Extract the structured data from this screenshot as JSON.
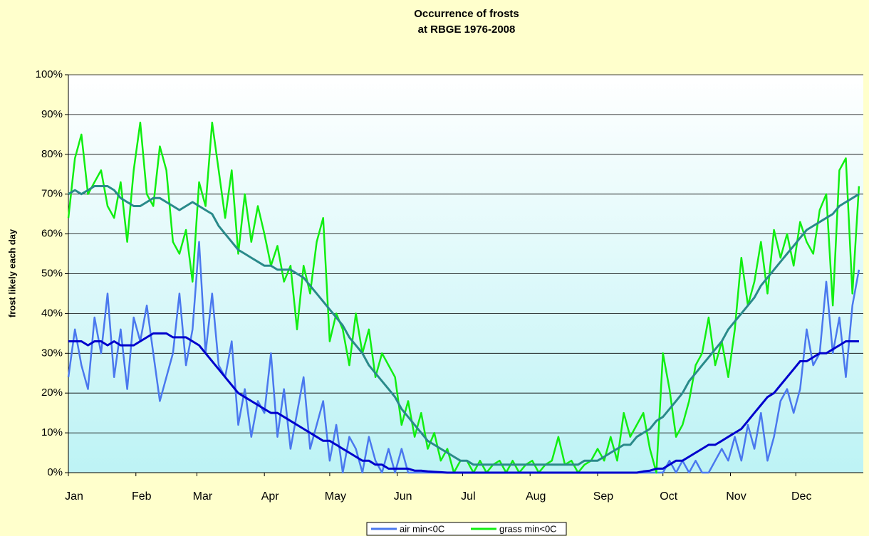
{
  "chart_data": {
    "type": "line",
    "title": "Occurrence of frosts",
    "subtitle": "at RBGE 1976-2008",
    "y_label": "frost likely each day",
    "xlim": [
      1,
      366
    ],
    "xticks": [
      {
        "value": 1,
        "label": "Jan"
      },
      {
        "value": 32,
        "label": "Feb"
      },
      {
        "value": 60,
        "label": "Mar"
      },
      {
        "value": 91,
        "label": "Apr"
      },
      {
        "value": 121,
        "label": "May"
      },
      {
        "value": 152,
        "label": "Jun"
      },
      {
        "value": 182,
        "label": "Jul"
      },
      {
        "value": 213,
        "label": "Aug"
      },
      {
        "value": 244,
        "label": "Sep"
      },
      {
        "value": 274,
        "label": "Oct"
      },
      {
        "value": 305,
        "label": "Nov"
      },
      {
        "value": 335,
        "label": "Dec"
      }
    ],
    "ylim": [
      0,
      100
    ],
    "yticks": [
      {
        "value": 0,
        "label": "0%"
      },
      {
        "value": 10,
        "label": "10%"
      },
      {
        "value": 20,
        "label": "20%"
      },
      {
        "value": 30,
        "label": "30%"
      },
      {
        "value": 40,
        "label": "40%"
      },
      {
        "value": 50,
        "label": "50%"
      },
      {
        "value": 60,
        "label": "60%"
      },
      {
        "value": 70,
        "label": "70%"
      },
      {
        "value": 80,
        "label": "80%"
      },
      {
        "value": 90,
        "label": "90%"
      },
      {
        "value": 100,
        "label": "100%"
      }
    ],
    "grid": true,
    "legend": "bottom",
    "x": [
      1,
      4,
      7,
      10,
      13,
      16,
      19,
      22,
      25,
      28,
      31,
      34,
      37,
      40,
      43,
      46,
      49,
      52,
      55,
      58,
      61,
      64,
      67,
      70,
      73,
      76,
      79,
      82,
      85,
      88,
      91,
      94,
      97,
      100,
      103,
      106,
      109,
      112,
      115,
      118,
      121,
      124,
      127,
      130,
      133,
      136,
      139,
      142,
      145,
      148,
      151,
      154,
      157,
      160,
      163,
      166,
      169,
      172,
      175,
      178,
      181,
      184,
      187,
      190,
      193,
      196,
      199,
      202,
      205,
      208,
      211,
      214,
      217,
      220,
      223,
      226,
      229,
      232,
      235,
      238,
      241,
      244,
      247,
      250,
      253,
      256,
      259,
      262,
      265,
      268,
      271,
      274,
      277,
      280,
      283,
      286,
      289,
      292,
      295,
      298,
      301,
      304,
      307,
      310,
      313,
      316,
      319,
      322,
      325,
      328,
      331,
      334,
      337,
      340,
      343,
      346,
      349,
      352,
      355,
      358,
      361,
      364
    ],
    "series": [
      {
        "name": "air min<0C",
        "color": "#4a78ee",
        "values": [
          24,
          36,
          27,
          21,
          39,
          30,
          45,
          24,
          36,
          21,
          39,
          33,
          42,
          30,
          18,
          24,
          30,
          45,
          27,
          36,
          58,
          30,
          45,
          27,
          24,
          33,
          12,
          21,
          9,
          18,
          15,
          30,
          9,
          21,
          6,
          15,
          24,
          6,
          12,
          18,
          3,
          12,
          0,
          9,
          6,
          0,
          9,
          3,
          0,
          6,
          0,
          6,
          0,
          0,
          0,
          0,
          0,
          0,
          0,
          0,
          0,
          0,
          0,
          0,
          0,
          0,
          0,
          0,
          0,
          0,
          0,
          0,
          0,
          0,
          0,
          0,
          0,
          0,
          0,
          0,
          0,
          0,
          0,
          0,
          0,
          0,
          0,
          0,
          0,
          0,
          0,
          0,
          3,
          0,
          3,
          0,
          3,
          0,
          0,
          3,
          6,
          3,
          9,
          3,
          12,
          6,
          15,
          3,
          9,
          18,
          21,
          15,
          21,
          36,
          27,
          30,
          48,
          30,
          39,
          24,
          42,
          51
        ]
      },
      {
        "name": "grass min<0C",
        "color": "#11ee11",
        "values": [
          64,
          79,
          85,
          70,
          73,
          76,
          67,
          64,
          73,
          58,
          76,
          88,
          70,
          67,
          82,
          76,
          58,
          55,
          61,
          48,
          73,
          67,
          88,
          76,
          64,
          76,
          55,
          70,
          58,
          67,
          60,
          52,
          57,
          48,
          52,
          36,
          52,
          45,
          58,
          64,
          33,
          40,
          36,
          27,
          40,
          30,
          36,
          24,
          30,
          27,
          24,
          12,
          18,
          9,
          15,
          6,
          10,
          3,
          6,
          0,
          3,
          3,
          0,
          3,
          0,
          2,
          3,
          0,
          3,
          0,
          2,
          3,
          0,
          2,
          3,
          9,
          2,
          3,
          0,
          2,
          3,
          6,
          3,
          9,
          3,
          15,
          9,
          12,
          15,
          6,
          0,
          30,
          21,
          9,
          12,
          18,
          27,
          30,
          39,
          27,
          33,
          24,
          36,
          54,
          42,
          48,
          58,
          45,
          61,
          54,
          60,
          52,
          63,
          58,
          55,
          66,
          70,
          42,
          76,
          79,
          45,
          72
        ]
      },
      {
        "color": "#0000cc",
        "values": [
          33,
          33,
          33,
          32,
          33,
          33,
          32,
          33,
          32,
          32,
          32,
          33,
          34,
          35,
          35,
          35,
          34,
          34,
          34,
          33,
          32,
          30,
          28,
          26,
          24,
          22,
          20,
          19,
          18,
          17,
          16,
          15,
          15,
          14,
          13,
          12,
          11,
          10,
          9,
          8,
          8,
          7,
          6,
          5,
          4,
          3,
          3,
          2,
          2,
          1,
          1,
          1,
          1,
          0.5,
          0.5,
          0.3,
          0.2,
          0.1,
          0,
          0,
          0,
          0,
          0,
          0,
          0,
          0,
          0,
          0,
          0,
          0,
          0,
          0,
          0,
          0,
          0,
          0,
          0,
          0,
          0,
          0,
          0,
          0,
          0,
          0,
          0,
          0,
          0,
          0,
          0.3,
          0.5,
          1,
          1,
          2,
          3,
          3,
          4,
          5,
          6,
          7,
          7,
          8,
          9,
          10,
          11,
          13,
          15,
          17,
          19,
          20,
          22,
          24,
          26,
          28,
          28,
          29,
          30,
          30,
          31,
          32,
          33,
          33,
          33
        ]
      },
      {
        "color": "#2a8a8a",
        "values": [
          70,
          71,
          70,
          71,
          72,
          72,
          72,
          71,
          69,
          68,
          67,
          67,
          68,
          69,
          69,
          68,
          67,
          66,
          67,
          68,
          67,
          66,
          65,
          62,
          60,
          58,
          56,
          55,
          54,
          53,
          52,
          52,
          51,
          51,
          51,
          50,
          49,
          47,
          45,
          43,
          41,
          39,
          37,
          34,
          32,
          30,
          27,
          25,
          23,
          21,
          19,
          16,
          14,
          12,
          10,
          8,
          7,
          6,
          5,
          4,
          3,
          3,
          2,
          2,
          2,
          2,
          2,
          2,
          2,
          2,
          2,
          2,
          2,
          2,
          2,
          2,
          2,
          2,
          2,
          3,
          3,
          3,
          4,
          5,
          6,
          7,
          7,
          9,
          10,
          11,
          13,
          14,
          16,
          18,
          20,
          23,
          25,
          27,
          29,
          31,
          33,
          36,
          38,
          40,
          42,
          44,
          47,
          49,
          51,
          53,
          55,
          57,
          59,
          61,
          62,
          63,
          64,
          65,
          67,
          68,
          69,
          70
        ]
      }
    ]
  }
}
